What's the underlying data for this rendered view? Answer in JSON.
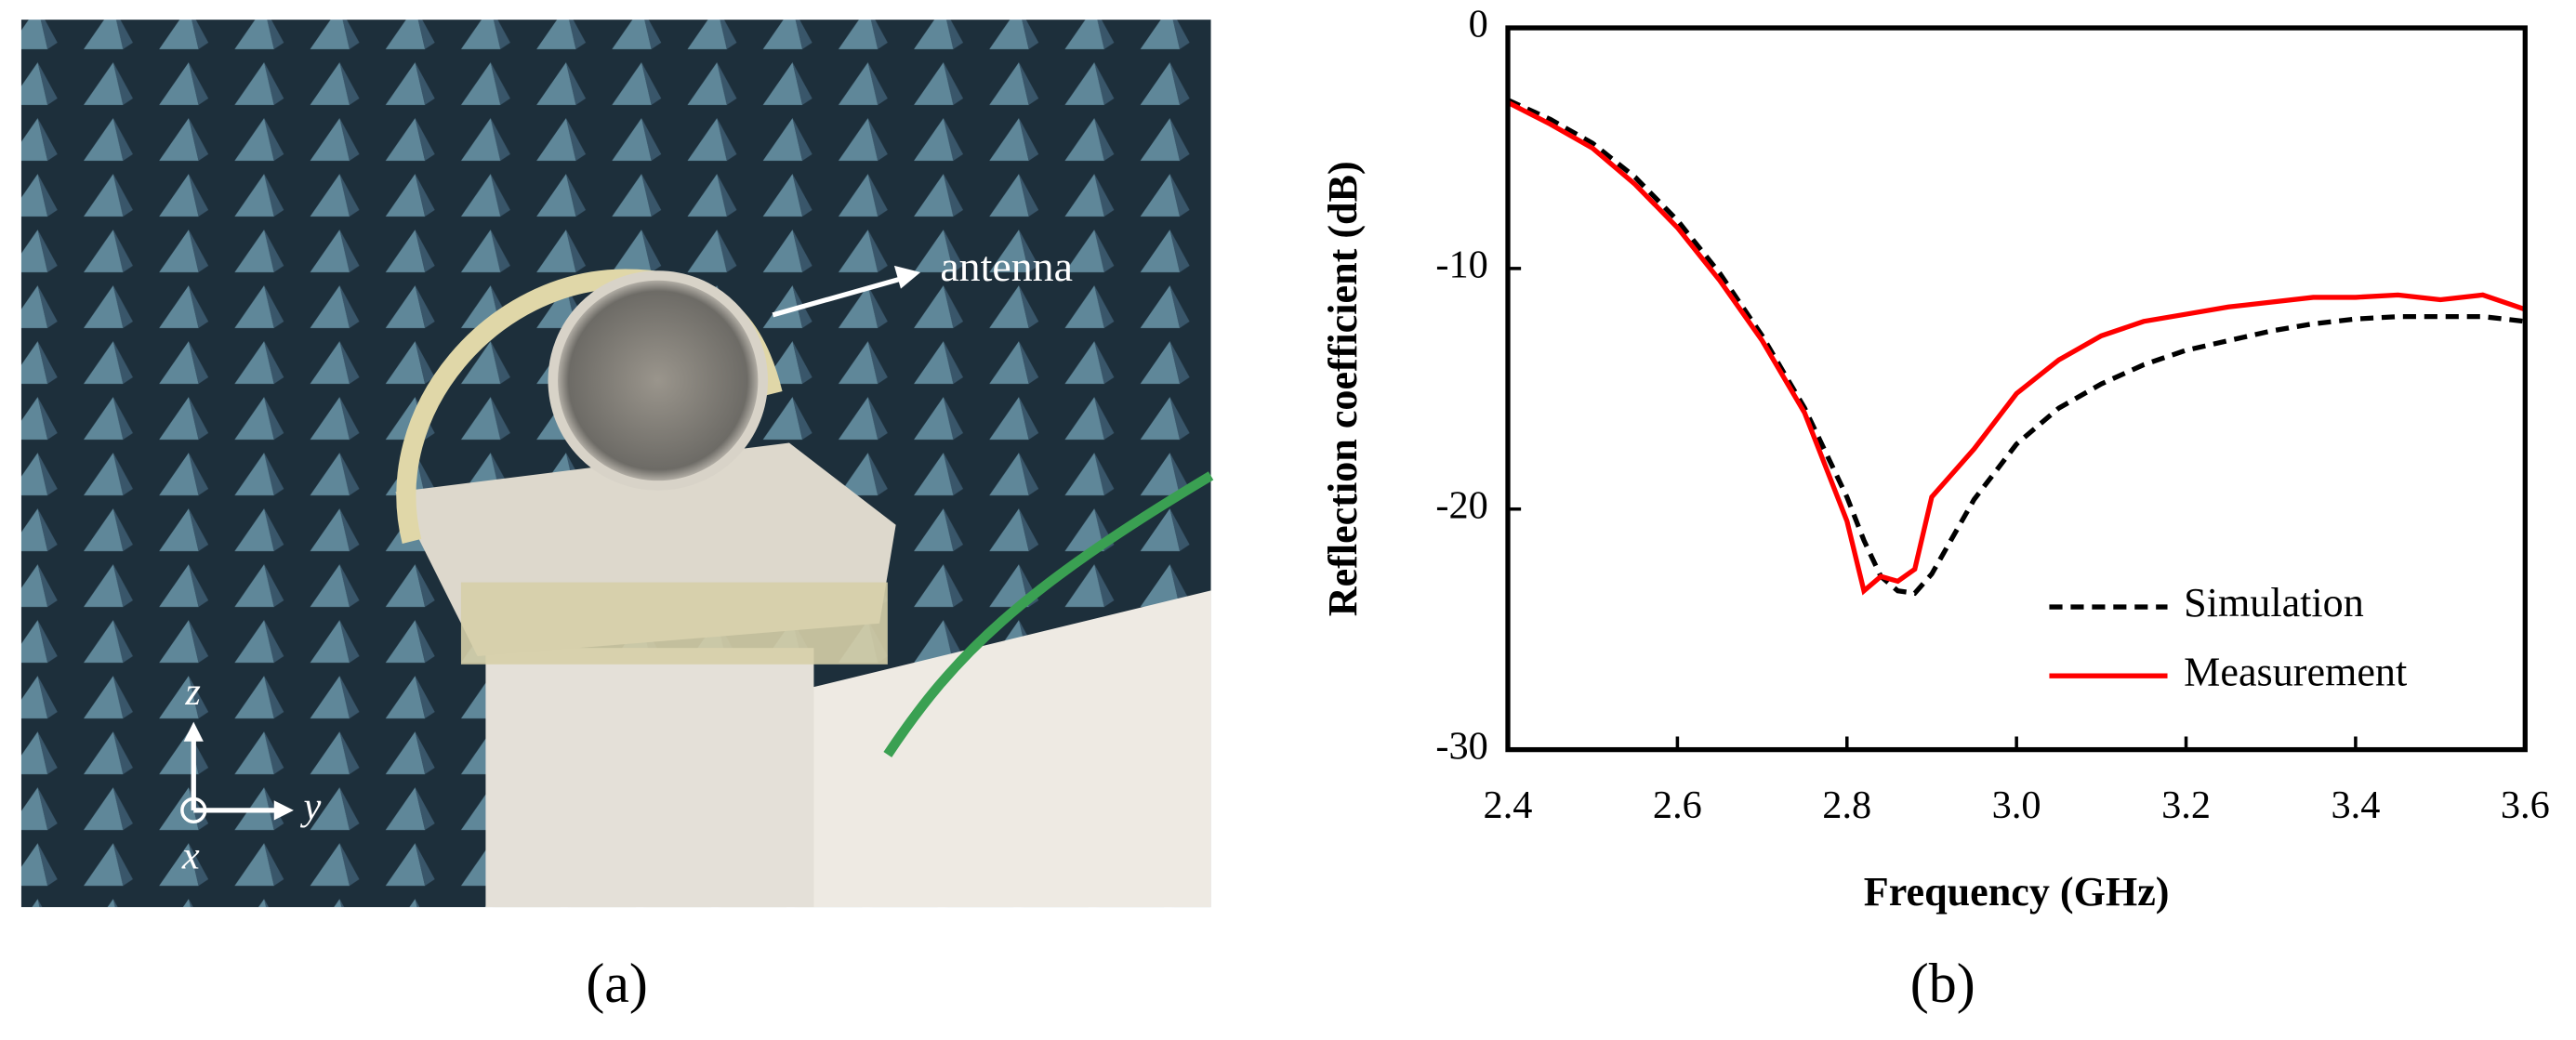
{
  "panel_labels": [
    "(a)",
    "(b)"
  ],
  "photo": {
    "annotation": "antenna",
    "axis_labels": [
      "z",
      "y",
      "x"
    ]
  },
  "chart_data": {
    "type": "line",
    "x_label": "Frequency  (GHz)",
    "y_label": "Reflection coefficient (dB)",
    "x": [
      2.4,
      2.45,
      2.5,
      2.55,
      2.6,
      2.65,
      2.7,
      2.75,
      2.8,
      2.82,
      2.84,
      2.86,
      2.88,
      2.9,
      2.95,
      3.0,
      3.05,
      3.1,
      3.15,
      3.2,
      3.25,
      3.3,
      3.35,
      3.4,
      3.45,
      3.5,
      3.55,
      3.6
    ],
    "series": [
      {
        "name": "Simulation",
        "color": "#000000",
        "dash": true,
        "values": [
          -3.0,
          -3.8,
          -4.8,
          -6.2,
          -8.0,
          -10.2,
          -12.8,
          -15.8,
          -19.5,
          -21.3,
          -22.8,
          -23.4,
          -23.5,
          -22.7,
          -19.6,
          -17.3,
          -15.8,
          -14.8,
          -14.0,
          -13.4,
          -13.0,
          -12.6,
          -12.3,
          -12.1,
          -12.0,
          -12.0,
          -12.0,
          -12.2
        ]
      },
      {
        "name": "Measurement",
        "color": "#ff0000",
        "dash": false,
        "values": [
          -3.1,
          -4.0,
          -5.0,
          -6.5,
          -8.3,
          -10.5,
          -13.0,
          -16.0,
          -20.5,
          -23.4,
          -22.8,
          -23.0,
          -22.5,
          -19.5,
          -17.5,
          -15.2,
          -13.8,
          -12.8,
          -12.2,
          -11.9,
          -11.6,
          -11.4,
          -11.2,
          -11.2,
          -11.1,
          -11.3,
          -11.1,
          -11.7
        ]
      }
    ],
    "xlim": [
      2.4,
      3.6
    ],
    "ylim": [
      -30,
      0
    ],
    "xticks": [
      2.4,
      2.6,
      2.8,
      {
        "value": 3,
        "label": "3.0"
      },
      3.2,
      3.4,
      3.6
    ],
    "yticks": [
      0,
      -10,
      -20,
      -30
    ],
    "legend": "lower right",
    "grid": false
  }
}
